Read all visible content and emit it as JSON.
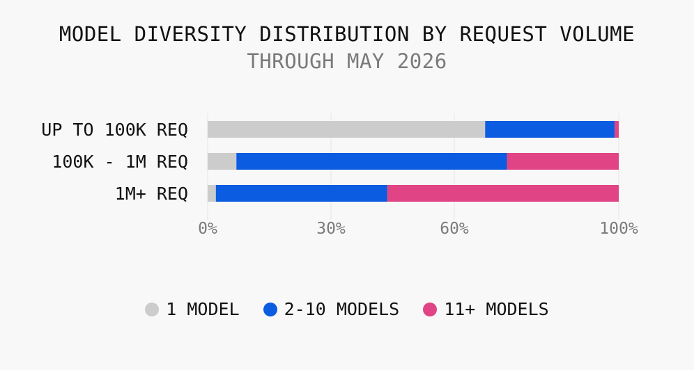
{
  "chart_data": {
    "type": "bar",
    "orientation": "horizontal",
    "stacked": true,
    "title": "MODEL DIVERSITY DISTRIBUTION BY REQUEST VOLUME",
    "subtitle": "THROUGH MAY 2026",
    "categories": [
      "UP TO 100K REQ",
      "100K - 1M REQ",
      "1M+ REQ"
    ],
    "series": [
      {
        "name": "1 MODEL",
        "color": "#cccccc",
        "values": [
          67.5,
          7,
          2
        ]
      },
      {
        "name": "2-10 MODELS",
        "color": "#0b5ce0",
        "values": [
          31.5,
          65.8,
          41.7
        ]
      },
      {
        "name": "11+ MODELS",
        "color": "#e04485",
        "values": [
          1,
          27.2,
          56.3
        ]
      }
    ],
    "xlim": [
      0,
      100
    ],
    "xticks": [
      0,
      30,
      60,
      100
    ],
    "xtick_labels": [
      "0%",
      "30%",
      "60%",
      "100%"
    ],
    "grid": true,
    "legend_position": "bottom"
  }
}
